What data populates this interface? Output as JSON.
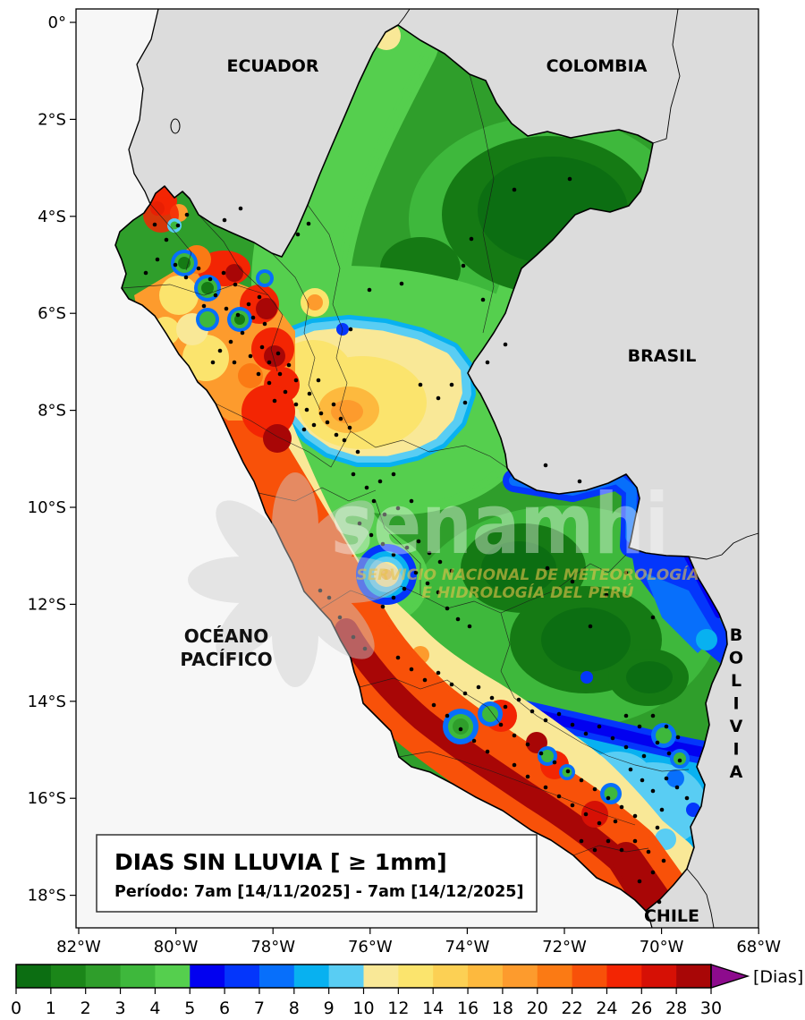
{
  "title_box": {
    "title": "DIAS SIN LLUVIA [ ≥ 1mm]",
    "period": "Período: 7am [14/11/2025] - 7am [14/12/2025]"
  },
  "region_labels": {
    "ecuador": "ECUADOR",
    "colombia": "COLOMBIA",
    "brasil": "BRASIL",
    "bolivia": "BOLIVIA",
    "chile": "CHILE",
    "ocean_line1": "OCÉANO",
    "ocean_line2": "PACÍFICO"
  },
  "watermark": {
    "brand": "senamhi",
    "caption1": "SERVICIO NACIONAL DE METEOROLOGÍA",
    "caption2": "E HIDROLOGÍA DEL PERÚ"
  },
  "axes": {
    "x_ticks": [
      "82°W",
      "80°W",
      "78°W",
      "76°W",
      "74°W",
      "72°W",
      "70°W",
      "68°W"
    ],
    "y_ticks": [
      "0°",
      "2°S",
      "4°S",
      "6°S",
      "8°S",
      "10°S",
      "12°S",
      "14°S",
      "16°S",
      "18°S"
    ]
  },
  "colorbar": {
    "unit": "[Dias]",
    "tick_labels": [
      "0",
      "1",
      "2",
      "3",
      "4",
      "5",
      "6",
      "7",
      "8",
      "9",
      "10",
      "12",
      "14",
      "16",
      "18",
      "20",
      "22",
      "24",
      "26",
      "28",
      "30"
    ],
    "segment_colors": [
      "#0c6e12",
      "#1b8619",
      "#2f9e2b",
      "#3eb83c",
      "#55cf4e",
      "#0201f0",
      "#0436fb",
      "#076ffb",
      "#08b1f0",
      "#59cdf3",
      "#f9e897",
      "#fbe46d",
      "#fcd054",
      "#fdb93e",
      "#fd9b2d",
      "#fb7a14",
      "#f85109",
      "#f32503",
      "#d61005",
      "#a80606"
    ],
    "overflow_color": "#8d0b8d"
  }
}
